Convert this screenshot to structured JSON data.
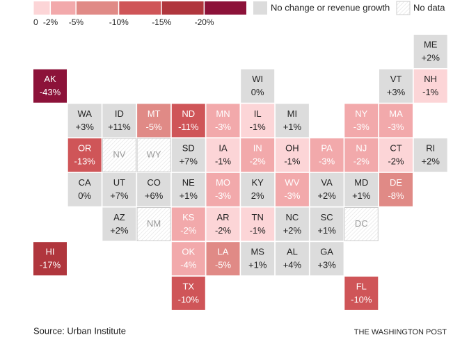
{
  "legend": {
    "bins": [
      0,
      {
        "value": -2,
        "label": "-2%"
      },
      {
        "value": -5,
        "label": "-5%"
      },
      {
        "value": -10,
        "label": "-10%"
      },
      {
        "value": -15,
        "label": "-15%"
      },
      {
        "value": -20,
        "label": "-20%"
      }
    ],
    "lim": [
      0,
      -25
    ],
    "colors": [
      "#fcd5d7",
      "#f2a9ab",
      "#e08a86",
      "#cf5558",
      "#b0363d",
      "#8c1239"
    ],
    "no_change": {
      "label": "No change or revenue growth",
      "color": "#dcdcdc"
    },
    "no_data": {
      "label": "No data"
    }
  },
  "tiles": [
    {
      "state": "ME",
      "value": 2,
      "value_label": "+2%",
      "color": "#dcdcdc"
    },
    {
      "state": "AK",
      "value": -43,
      "value_label": "-43%",
      "color": "#8c1239"
    },
    {
      "state": "WI",
      "value": 0,
      "value_label": "0%",
      "color": "#dcdcdc"
    },
    {
      "state": "VT",
      "value": 3,
      "value_label": "+3%",
      "color": "#dcdcdc"
    },
    {
      "state": "NH",
      "value": -1,
      "value_label": "-1%",
      "color": "#fcd5d7"
    },
    {
      "state": "WA",
      "value": 3,
      "value_label": "+3%",
      "color": "#dcdcdc"
    },
    {
      "state": "ID",
      "value": 11,
      "value_label": "+11%",
      "color": "#dcdcdc"
    },
    {
      "state": "MT",
      "value": -5,
      "value_label": "-5%",
      "color": "#e08a86"
    },
    {
      "state": "ND",
      "value": -11,
      "value_label": "-11%",
      "color": "#cf5558"
    },
    {
      "state": "MN",
      "value": -3,
      "value_label": "-3%",
      "color": "#f2a9ab"
    },
    {
      "state": "IL",
      "value": -1,
      "value_label": "-1%",
      "color": "#fcd5d7"
    },
    {
      "state": "MI",
      "value": 1,
      "value_label": "+1%",
      "color": "#dcdcdc"
    },
    {
      "state": "NY",
      "value": -3,
      "value_label": "-3%",
      "color": "#f2a9ab"
    },
    {
      "state": "MA",
      "value": -3,
      "value_label": "-3%",
      "color": "#f2a9ab"
    },
    {
      "state": "OR",
      "value": -13,
      "value_label": "-13%",
      "color": "#cf5558"
    },
    {
      "state": "NV",
      "value": null
    },
    {
      "state": "WY",
      "value": null
    },
    {
      "state": "SD",
      "value": 7,
      "value_label": "+7%",
      "color": "#dcdcdc"
    },
    {
      "state": "IA",
      "value": -1,
      "value_label": "-1%",
      "color": "#fcd5d7"
    },
    {
      "state": "IN",
      "value": -2,
      "value_label": "-2%",
      "color": "#f2a9ab"
    },
    {
      "state": "OH",
      "value": -1,
      "value_label": "-1%",
      "color": "#fcd5d7"
    },
    {
      "state": "PA",
      "value": -3,
      "value_label": "-3%",
      "color": "#f2a9ab"
    },
    {
      "state": "NJ",
      "value": -2,
      "value_label": "-2%",
      "color": "#f2a9ab"
    },
    {
      "state": "CT",
      "value": -2,
      "value_label": "-2%",
      "color": "#fcd5d7"
    },
    {
      "state": "RI",
      "value": 2,
      "value_label": "+2%",
      "color": "#dcdcdc"
    },
    {
      "state": "CA",
      "value": 0,
      "value_label": "0%",
      "color": "#dcdcdc"
    },
    {
      "state": "UT",
      "value": 7,
      "value_label": "+7%",
      "color": "#dcdcdc"
    },
    {
      "state": "CO",
      "value": 6,
      "value_label": "+6%",
      "color": "#dcdcdc"
    },
    {
      "state": "NE",
      "value": 1,
      "value_label": "+1%",
      "color": "#dcdcdc"
    },
    {
      "state": "MO",
      "value": -3,
      "value_label": "-3%",
      "color": "#f2a9ab"
    },
    {
      "state": "KY",
      "value": 2,
      "value_label": "2%",
      "color": "#dcdcdc"
    },
    {
      "state": "WV",
      "value": -3,
      "value_label": "-3%",
      "color": "#f2a9ab"
    },
    {
      "state": "VA",
      "value": 2,
      "value_label": "+2%",
      "color": "#dcdcdc"
    },
    {
      "state": "MD",
      "value": 1,
      "value_label": "+1%",
      "color": "#dcdcdc"
    },
    {
      "state": "DE",
      "value": -8,
      "value_label": "-8%",
      "color": "#e08a86"
    },
    {
      "state": "AZ",
      "value": 2,
      "value_label": "+2%",
      "color": "#dcdcdc"
    },
    {
      "state": "NM",
      "value": null
    },
    {
      "state": "KS",
      "value": -2,
      "value_label": "-2%",
      "color": "#f2a9ab"
    },
    {
      "state": "AR",
      "value": -2,
      "value_label": "-2%",
      "color": "#fcd5d7"
    },
    {
      "state": "TN",
      "value": -1,
      "value_label": "-1%",
      "color": "#fcd5d7"
    },
    {
      "state": "NC",
      "value": 2,
      "value_label": "+2%",
      "color": "#dcdcdc"
    },
    {
      "state": "SC",
      "value": 1,
      "value_label": "+1%",
      "color": "#dcdcdc"
    },
    {
      "state": "DC",
      "value": null
    },
    {
      "state": "HI",
      "value": -17,
      "value_label": "-17%",
      "color": "#b0363d"
    },
    {
      "state": "OK",
      "value": -4,
      "value_label": "-4%",
      "color": "#f2a9ab"
    },
    {
      "state": "LA",
      "value": -5,
      "value_label": "-5%",
      "color": "#e08a86"
    },
    {
      "state": "MS",
      "value": 1,
      "value_label": "+1%",
      "color": "#dcdcdc"
    },
    {
      "state": "AL",
      "value": 4,
      "value_label": "+4%",
      "color": "#dcdcdc"
    },
    {
      "state": "GA",
      "value": 3,
      "value_label": "+3%",
      "color": "#dcdcdc"
    },
    {
      "state": "TX",
      "value": -10,
      "value_label": "-10%",
      "color": "#cf5558"
    },
    {
      "state": "FL",
      "value": -10,
      "value_label": "-10%",
      "color": "#cf5558"
    }
  ],
  "source": "Source: Urban Institute",
  "credit": "THE WASHINGTON POST"
}
